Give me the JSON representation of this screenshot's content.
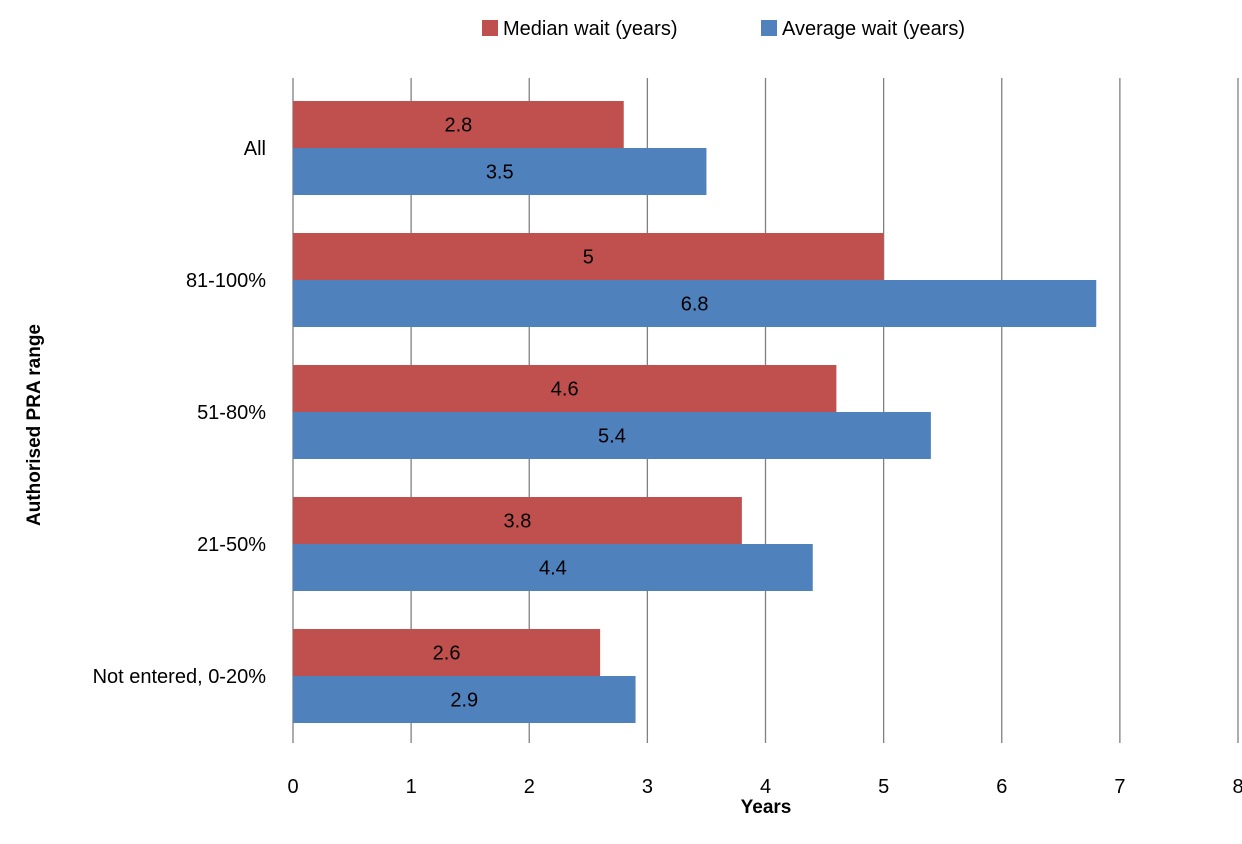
{
  "chart_data": {
    "type": "bar",
    "orientation": "horizontal",
    "categories": [
      "Not entered, 0-20%",
      "21-50%",
      "51-80%",
      "81-100%",
      "All"
    ],
    "series": [
      {
        "name": "Median wait (years)",
        "color": "#C0504D",
        "values": [
          2.6,
          3.8,
          4.6,
          5,
          2.8
        ],
        "labels": [
          "2.6",
          "3.8",
          "4.6",
          "5",
          "2.8"
        ]
      },
      {
        "name": "Average wait (years)",
        "color": "#4F81BD",
        "values": [
          2.9,
          4.4,
          5.4,
          6.8,
          3.5
        ],
        "labels": [
          "2.9",
          "4.4",
          "5.4",
          "6.8",
          "3.5"
        ]
      }
    ],
    "title": "",
    "xlabel": "Years",
    "ylabel": "Authorised PRA range",
    "xlim": [
      0,
      8
    ],
    "xticks": [
      "0",
      "1",
      "2",
      "3",
      "4",
      "5",
      "6",
      "7",
      "8"
    ],
    "grid": "vertical",
    "legend_position": "top",
    "gridline_color": "#808080"
  }
}
